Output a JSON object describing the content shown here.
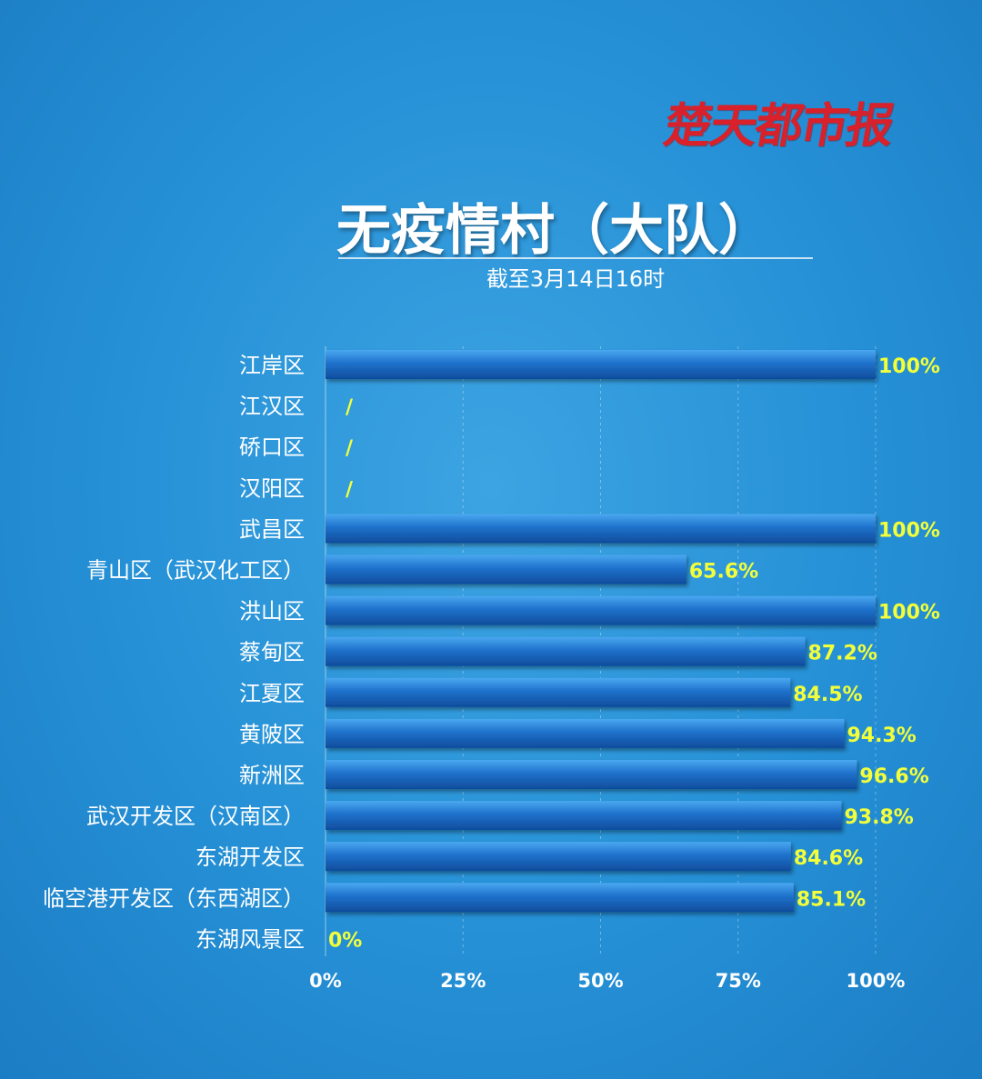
{
  "logo_text": "楚天都市报",
  "title": "无疫情村（大队）",
  "subtitle": "截至3月14日16时",
  "colors": {
    "bar_top": "#4aa8f0",
    "bar_mid": "#1f72cc",
    "bar_bottom": "#0f4c9c",
    "value_label": "#f2ff3a",
    "gridline": "rgba(255,255,255,0.35)"
  },
  "chart_data": {
    "type": "bar",
    "orientation": "horizontal",
    "title": "无疫情村（大队）",
    "subtitle": "截至3月14日16时",
    "categories": [
      "江岸区",
      "江汉区",
      "硚口区",
      "汉阳区",
      "武昌区",
      "青山区（武汉化工区）",
      "洪山区",
      "蔡甸区",
      "江夏区",
      "黄陂区",
      "新洲区",
      "武汉开发区（汉南区）",
      "东湖开发区",
      "临空港开发区（东西湖区）",
      "东湖风景区"
    ],
    "values": [
      100,
      null,
      null,
      null,
      100,
      65.6,
      100,
      87.2,
      84.5,
      94.3,
      96.6,
      93.8,
      84.6,
      85.1,
      0
    ],
    "value_labels": [
      "100%",
      "/",
      "/",
      "/",
      "100%",
      "65.6%",
      "100%",
      "87.2%",
      "84.5%",
      "94.3%",
      "96.6%",
      "93.8%",
      "84.6%",
      "85.1%",
      "0%"
    ],
    "xlim": [
      0,
      100
    ],
    "xticks": [
      "0%",
      "25%",
      "50%",
      "75%",
      "100%"
    ],
    "grid": "vertical dashed",
    "legend": "none"
  }
}
